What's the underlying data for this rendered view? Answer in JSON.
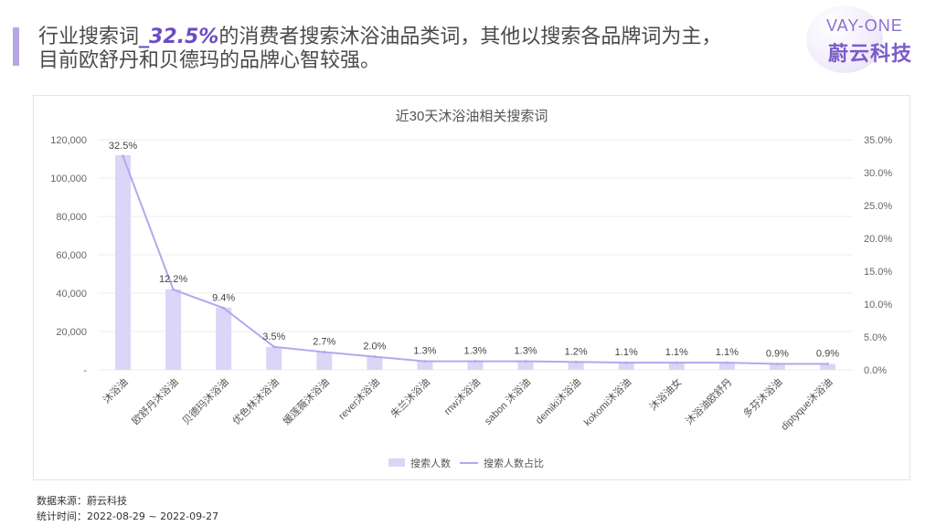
{
  "headline": {
    "pre": "行业搜索词",
    "highlight": "_32.5%",
    "post": "的消费者搜索沐浴油品类词，其他以搜索各品牌词为主，",
    "line2": "目前欧舒丹和贝德玛的品牌心智较强。"
  },
  "logo": {
    "en": "VAY-ONE",
    "cn": "蔚云科技"
  },
  "chart_data": {
    "type": "bar",
    "title": "近30天沐浴油相关搜索词",
    "categories": [
      "沐浴油",
      "欧舒丹沐浴油",
      "贝德玛沐浴油",
      "优色林沐浴油",
      "媛莲薇沐浴油",
      "rever沐浴油",
      "朱兰沐浴油",
      "rnw沐浴油",
      "sabon 沐浴油",
      "demiki沐浴油",
      "kokomi沐浴油",
      "沐浴油女",
      "沐浴油欧舒丹",
      "多芬沐浴油",
      "diptyque沐浴油"
    ],
    "series": [
      {
        "name": "搜索人数",
        "type": "bar",
        "axis": "left",
        "values": [
          112000,
          42000,
          32500,
          12000,
          9300,
          7000,
          4500,
          4400,
          4400,
          4100,
          3800,
          3800,
          3800,
          3100,
          3100
        ]
      },
      {
        "name": "搜索人数占比",
        "type": "line",
        "axis": "right",
        "values": [
          32.5,
          12.2,
          9.4,
          3.5,
          2.7,
          2.0,
          1.3,
          1.3,
          1.3,
          1.2,
          1.1,
          1.1,
          1.1,
          0.9,
          0.9
        ],
        "labels": [
          "32.5%",
          "12.2%",
          "9.4%",
          "3.5%",
          "2.7%",
          "2.0%",
          "1.3%",
          "1.3%",
          "1.3%",
          "1.2%",
          "1.1%",
          "1.1%",
          "1.1%",
          "0.9%",
          "0.9%"
        ]
      }
    ],
    "y_left": {
      "min": 0,
      "max": 120000,
      "ticks": [
        "-",
        "20,000",
        "40,000",
        "60,000",
        "80,000",
        "100,000",
        "120,000"
      ]
    },
    "y_right": {
      "min": 0,
      "max": 35,
      "ticks": [
        "0.0%",
        "5.0%",
        "10.0%",
        "15.0%",
        "20.0%",
        "25.0%",
        "30.0%",
        "35.0%"
      ]
    },
    "grid": true,
    "legend_placement": "bottom",
    "colors": {
      "bar": "#dcd5f7",
      "line": "#b5a8ec",
      "grid": "#ececec"
    }
  },
  "footer": {
    "source": "数据来源：蔚云科技",
    "period": "统计时间：2022-08-29 ~ 2022-09-27"
  }
}
